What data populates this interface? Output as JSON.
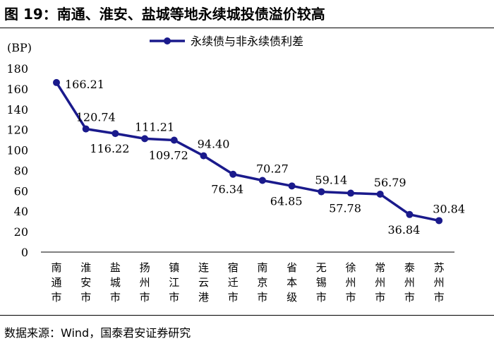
{
  "figure": {
    "title": "图 19：南通、淮安、盐城等地永续城投债溢价较高",
    "source": "数据来源：Wind，国泰君安证券研究"
  },
  "colors": {
    "series": "#1a1a8c"
  },
  "chart_data": {
    "type": "line",
    "ylabel": "(BP)",
    "ylim": [
      0,
      180
    ],
    "yticks": [
      0,
      20,
      40,
      60,
      80,
      100,
      120,
      140,
      160,
      180
    ],
    "grid": false,
    "legend_position": "top",
    "categories": [
      "南通市",
      "淮安市",
      "盐城市",
      "扬州市",
      "镇江市",
      "连云港",
      "宿迁市",
      "南京市",
      "省本级",
      "无锡市",
      "徐州市",
      "常州市",
      "泰州市",
      "苏州市"
    ],
    "series": [
      {
        "name": "永续债与非永续债利差",
        "values": [
          166.21,
          120.74,
          116.22,
          111.21,
          109.72,
          94.4,
          76.34,
          70.27,
          64.85,
          59.14,
          57.78,
          56.79,
          36.84,
          30.84
        ],
        "labels": [
          "166.21",
          "120.74",
          "116.22",
          "111.21",
          "109.72",
          "94.40",
          "76.34",
          "70.27",
          "64.85",
          "59.14",
          "57.78",
          "56.79",
          "36.84",
          "30.84"
        ]
      }
    ]
  }
}
